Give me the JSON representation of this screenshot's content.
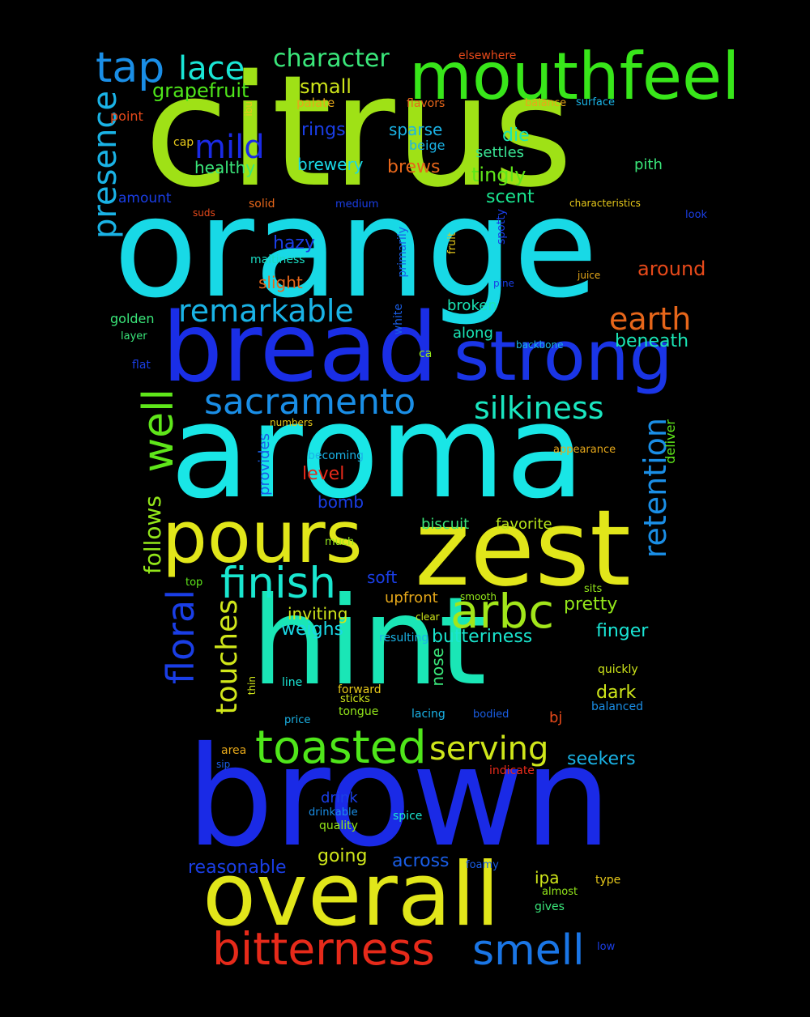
{
  "words": [
    {
      "text": "citrus",
      "color": "#9fe116",
      "vertical": false
    },
    {
      "text": "orange",
      "color": "#18d9e6",
      "vertical": false
    },
    {
      "text": "brown",
      "color": "#1a2ae6",
      "vertical": false
    },
    {
      "text": "aroma",
      "color": "#19e6e6",
      "vertical": false
    },
    {
      "text": "hint",
      "color": "#1ae6b6",
      "vertical": false
    },
    {
      "text": "bread",
      "color": "#1a2ee6",
      "vertical": false
    },
    {
      "text": "zest",
      "color": "#e1e61a",
      "vertical": false
    },
    {
      "text": "mouthfeel",
      "color": "#38e61a",
      "vertical": false
    },
    {
      "text": "overall",
      "color": "#e1e61a",
      "vertical": false
    },
    {
      "text": "strong",
      "color": "#1a35e6",
      "vertical": false
    },
    {
      "text": "pours",
      "color": "#e1e61a",
      "vertical": false
    },
    {
      "text": "toasted",
      "color": "#4fe61a",
      "vertical": false
    },
    {
      "text": "bitterness",
      "color": "#e62a1a",
      "vertical": false
    },
    {
      "text": "smell",
      "color": "#1a76e6",
      "vertical": false
    },
    {
      "text": "finish",
      "color": "#1ae6cf",
      "vertical": false
    },
    {
      "text": "arbc",
      "color": "#a2e61a",
      "vertical": false
    },
    {
      "text": "remarkable",
      "color": "#1ab3e6",
      "vertical": false
    },
    {
      "text": "sacramento",
      "color": "#1a8ee6",
      "vertical": false
    },
    {
      "text": "silkiness",
      "color": "#1ae6c0",
      "vertical": false
    },
    {
      "text": "serving",
      "color": "#cfe61a",
      "vertical": false
    },
    {
      "text": "earth",
      "color": "#e6661a",
      "vertical": false
    },
    {
      "text": "tap",
      "color": "#1a8ee6",
      "vertical": false
    },
    {
      "text": "lace",
      "color": "#1ae6d6",
      "vertical": false
    },
    {
      "text": "character",
      "color": "#3ae67a",
      "vertical": false
    },
    {
      "text": "mild",
      "color": "#1a2ae6",
      "vertical": false
    },
    {
      "text": "presence",
      "color": "#1ab3e6",
      "vertical": true
    },
    {
      "text": "well",
      "color": "#5fe61a",
      "vertical": true
    },
    {
      "text": "floral",
      "color": "#1a3ee6",
      "vertical": true
    },
    {
      "text": "touches",
      "color": "#d0e61a",
      "vertical": true
    },
    {
      "text": "retention",
      "color": "#1a8ee6",
      "vertical": true
    },
    {
      "text": "follows",
      "color": "#93e61a",
      "vertical": true
    },
    {
      "text": "grapefruit",
      "color": "#4fe61a",
      "vertical": false
    },
    {
      "text": "small",
      "color": "#cfe61a",
      "vertical": false
    },
    {
      "text": "rings",
      "color": "#1a3ee6",
      "vertical": false
    },
    {
      "text": "sparse",
      "color": "#1ab3e6",
      "vertical": false
    },
    {
      "text": "die",
      "color": "#1ae6b6",
      "vertical": false
    },
    {
      "text": "beige",
      "color": "#1ab3e6",
      "vertical": false
    },
    {
      "text": "settles",
      "color": "#3ae695",
      "vertical": false
    },
    {
      "text": "tingly",
      "color": "#5fe61a",
      "vertical": false
    },
    {
      "text": "brews",
      "color": "#e6661a",
      "vertical": false
    },
    {
      "text": "brewery",
      "color": "#1ad9e6",
      "vertical": false
    },
    {
      "text": "healthy",
      "color": "#3ae67a",
      "vertical": false
    },
    {
      "text": "scent",
      "color": "#1ae690",
      "vertical": false
    },
    {
      "text": "pith",
      "color": "#3ae67a",
      "vertical": false
    },
    {
      "text": "hazy",
      "color": "#1a3ee6",
      "vertical": false
    },
    {
      "text": "maltiness",
      "color": "#1ad9c0",
      "vertical": false
    },
    {
      "text": "slight",
      "color": "#e6661a",
      "vertical": false
    },
    {
      "text": "around",
      "color": "#e6491a",
      "vertical": false
    },
    {
      "text": "broken",
      "color": "#1ae6b6",
      "vertical": false
    },
    {
      "text": "along",
      "color": "#1ae6b6",
      "vertical": false
    },
    {
      "text": "beneath",
      "color": "#1ae6b6",
      "vertical": false
    },
    {
      "text": "golden",
      "color": "#3ae67a",
      "vertical": false
    },
    {
      "text": "amount",
      "color": "#1a3ee6",
      "vertical": false
    },
    {
      "text": "level",
      "color": "#e62a1a",
      "vertical": false
    },
    {
      "text": "bomb",
      "color": "#1a3ee6",
      "vertical": false
    },
    {
      "text": "biscuit",
      "color": "#3ae67a",
      "vertical": false
    },
    {
      "text": "favorite",
      "color": "#b8e61a",
      "vertical": false
    },
    {
      "text": "soft",
      "color": "#1a3ee6",
      "vertical": false
    },
    {
      "text": "upfront",
      "color": "#e6a81a",
      "vertical": false
    },
    {
      "text": "inviting",
      "color": "#cfe61a",
      "vertical": false
    },
    {
      "text": "pretty",
      "color": "#93e61a",
      "vertical": false
    },
    {
      "text": "weighs",
      "color": "#1ad9e6",
      "vertical": false
    },
    {
      "text": "butteriness",
      "color": "#1ae6cf",
      "vertical": false
    },
    {
      "text": "finger",
      "color": "#1ae6d6",
      "vertical": false
    },
    {
      "text": "dark",
      "color": "#cfe61a",
      "vertical": false
    },
    {
      "text": "drink",
      "color": "#1a3ee6",
      "vertical": false
    },
    {
      "text": "going",
      "color": "#cfe61a",
      "vertical": false
    },
    {
      "text": "across",
      "color": "#1a5ee6",
      "vertical": false
    },
    {
      "text": "reasonable",
      "color": "#1a3ee6",
      "vertical": false
    },
    {
      "text": "seekers",
      "color": "#1ab3e6",
      "vertical": false
    },
    {
      "text": "nose",
      "color": "#3ae67a",
      "vertical": true
    },
    {
      "text": "provides",
      "color": "#1a5ee6",
      "vertical": true
    },
    {
      "text": "deliver",
      "color": "#5fe61a",
      "vertical": true
    },
    {
      "text": "ipa",
      "color": "#cfe61a",
      "vertical": false
    },
    {
      "text": "elsewhere",
      "color": "#e6491a",
      "vertical": false
    },
    {
      "text": "palate",
      "color": "#e6a81a",
      "vertical": false
    },
    {
      "text": "flavors",
      "color": "#e6661a",
      "vertical": false
    },
    {
      "text": "balance",
      "color": "#e6a81a",
      "vertical": false
    },
    {
      "text": "surface",
      "color": "#1ab3e6",
      "vertical": false
    },
    {
      "text": "point",
      "color": "#e6491a",
      "vertical": false
    },
    {
      "text": "ibu",
      "color": "#e6c81a",
      "vertical": true
    },
    {
      "text": "cap",
      "color": "#e6c81a",
      "vertical": false
    },
    {
      "text": "suds",
      "color": "#e6491a",
      "vertical": false
    },
    {
      "text": "solid",
      "color": "#e6661a",
      "vertical": false
    },
    {
      "text": "medium",
      "color": "#1a3ee6",
      "vertical": false
    },
    {
      "text": "characteristics",
      "color": "#e6c81a",
      "vertical": false
    },
    {
      "text": "look",
      "color": "#1a3ee6",
      "vertical": false
    },
    {
      "text": "spotty",
      "color": "#1a3ee6",
      "vertical": true
    },
    {
      "text": "fruit",
      "color": "#e6c81a",
      "vertical": true
    },
    {
      "text": "primarily",
      "color": "#1a5ee6",
      "vertical": true
    },
    {
      "text": "white",
      "color": "#1a5ee6",
      "vertical": true
    },
    {
      "text": "pine",
      "color": "#1a3ee6",
      "vertical": false
    },
    {
      "text": "juice",
      "color": "#e6a81a",
      "vertical": false
    },
    {
      "text": "layer",
      "color": "#3ae67a",
      "vertical": false
    },
    {
      "text": "flat",
      "color": "#1a3ee6",
      "vertical": false
    },
    {
      "text": "backbone",
      "color": "#1ab3e6",
      "vertical": false
    },
    {
      "text": "ca",
      "color": "#93e61a",
      "vertical": false
    },
    {
      "text": "numbers",
      "color": "#e6c81a",
      "vertical": false
    },
    {
      "text": "appearance",
      "color": "#e6a81a",
      "vertical": false
    },
    {
      "text": "becoming",
      "color": "#1ab3e6",
      "vertical": false
    },
    {
      "text": "much",
      "color": "#93e61a",
      "vertical": false
    },
    {
      "text": "top",
      "color": "#5fe61a",
      "vertical": false
    },
    {
      "text": "smooth",
      "color": "#93e61a",
      "vertical": false
    },
    {
      "text": "sits",
      "color": "#93e61a",
      "vertical": false
    },
    {
      "text": "clear",
      "color": "#cfe61a",
      "vertical": false
    },
    {
      "text": "resulting",
      "color": "#1ab3e6",
      "vertical": false
    },
    {
      "text": "quickly",
      "color": "#cfe61a",
      "vertical": false
    },
    {
      "text": "line",
      "color": "#1ae6d6",
      "vertical": false
    },
    {
      "text": "thin",
      "color": "#cfe61a",
      "vertical": true
    },
    {
      "text": "forward",
      "color": "#e6c81a",
      "vertical": false
    },
    {
      "text": "sticks",
      "color": "#cfe61a",
      "vertical": false
    },
    {
      "text": "tongue",
      "color": "#93e61a",
      "vertical": false
    },
    {
      "text": "price",
      "color": "#1ab3e6",
      "vertical": false
    },
    {
      "text": "lacing",
      "color": "#1ab3e6",
      "vertical": false
    },
    {
      "text": "bodied",
      "color": "#1a5ee6",
      "vertical": false
    },
    {
      "text": "bj",
      "color": "#e6491a",
      "vertical": false
    },
    {
      "text": "balanced",
      "color": "#1a8ee6",
      "vertical": false
    },
    {
      "text": "area",
      "color": "#e6a81a",
      "vertical": false
    },
    {
      "text": "sip",
      "color": "#1a5ee6",
      "vertical": false
    },
    {
      "text": "indicate",
      "color": "#e62a1a",
      "vertical": false
    },
    {
      "text": "drinkable",
      "color": "#1a8ee6",
      "vertical": false
    },
    {
      "text": "spice",
      "color": "#1ae6cf",
      "vertical": false
    },
    {
      "text": "quality",
      "color": "#93e61a",
      "vertical": false
    },
    {
      "text": "foamy",
      "color": "#1a5ee6",
      "vertical": false
    },
    {
      "text": "almost",
      "color": "#93e61a",
      "vertical": false
    },
    {
      "text": "type",
      "color": "#e6c81a",
      "vertical": false
    },
    {
      "text": "gives",
      "color": "#3ae67a",
      "vertical": false
    },
    {
      "text": "low",
      "color": "#1a3ee6",
      "vertical": false
    }
  ]
}
